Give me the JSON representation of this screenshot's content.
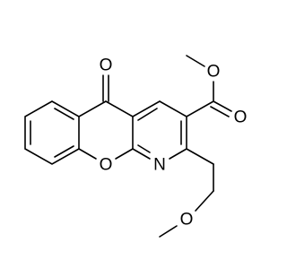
{
  "atoms": [
    {
      "label": "O"
    },
    {
      "label": "O"
    },
    {
      "label": "N"
    },
    {
      "label": "O"
    },
    {
      "label": "O"
    },
    {
      "label": "O"
    }
  ]
}
